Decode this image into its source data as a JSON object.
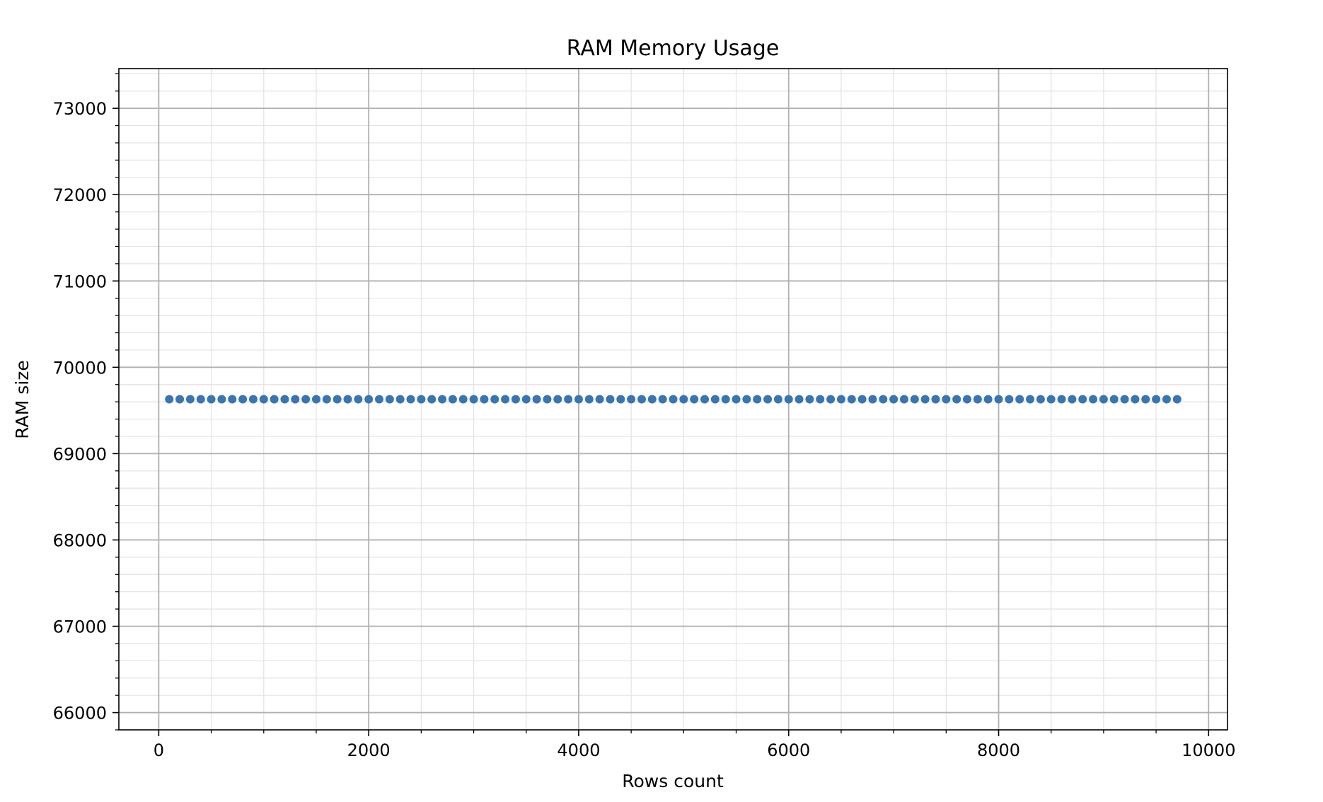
{
  "chart_data": {
    "type": "scatter",
    "title": "RAM Memory Usage",
    "xlabel": "Rows count",
    "ylabel": "RAM size",
    "xlim": [
      -380,
      10180
    ],
    "ylim": [
      65800,
      73460
    ],
    "x_ticks": [
      0,
      2000,
      4000,
      6000,
      8000,
      10000
    ],
    "x_tick_labels": [
      "0",
      "2000",
      "4000",
      "6000",
      "8000",
      "10000"
    ],
    "y_ticks": [
      66000,
      67000,
      68000,
      69000,
      70000,
      71000,
      72000,
      73000
    ],
    "y_tick_labels": [
      "66000",
      "67000",
      "68000",
      "69000",
      "70000",
      "71000",
      "72000",
      "73000"
    ],
    "grid": {
      "major": true,
      "minor": true
    },
    "marker_color": "#3b75af",
    "series": [
      {
        "x_start": 100,
        "x_step": 100,
        "x_end": 9700,
        "y_constant": 69630
      }
    ]
  }
}
